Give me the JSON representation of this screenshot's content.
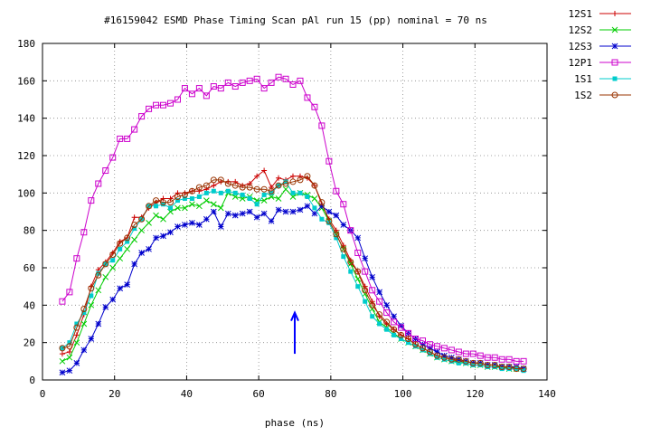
{
  "chart_data": {
    "type": "line",
    "title": "#16159042 ESMD Phase Timing Scan pAl run 15 (pp) nominal = 70 ns",
    "xlabel": "phase (ns)",
    "ylabel": "",
    "xlim": [
      0,
      140
    ],
    "ylim": [
      0,
      180
    ],
    "xticks": [
      0,
      20,
      40,
      60,
      80,
      100,
      120,
      140
    ],
    "yticks": [
      0,
      20,
      40,
      60,
      80,
      100,
      120,
      140,
      160,
      180
    ],
    "grid": "dotted",
    "legend_position": "outside-top-right",
    "annotation": {
      "type": "arrow",
      "x": 70,
      "y_from": 14,
      "y_to": 36,
      "color": "#0000ff"
    },
    "x": [
      5.5,
      7.5,
      9.5,
      11.5,
      13.5,
      15.5,
      17.5,
      19.5,
      21.5,
      23.5,
      25.5,
      27.5,
      29.5,
      31.5,
      33.5,
      35.5,
      37.5,
      39.5,
      41.5,
      43.5,
      45.5,
      47.5,
      49.5,
      51.5,
      53.5,
      55.5,
      57.5,
      59.5,
      61.5,
      63.5,
      65.5,
      67.5,
      69.5,
      71.5,
      73.5,
      75.5,
      77.5,
      79.5,
      81.5,
      83.5,
      85.5,
      87.5,
      89.5,
      91.5,
      93.5,
      95.5,
      97.5,
      99.5,
      101.5,
      103.5,
      105.5,
      107.5,
      109.5,
      111.5,
      113.5,
      115.5,
      117.5,
      119.5,
      121.5,
      123.5,
      125.5,
      127.5,
      129.5,
      131.5,
      133.5
    ],
    "series": [
      {
        "name": "12S1",
        "color": "#cc0000",
        "marker": "plus",
        "values": [
          14,
          15,
          24,
          35,
          50,
          59,
          63,
          68,
          74,
          76,
          87,
          87,
          92,
          95,
          97,
          97,
          100,
          100,
          101,
          101,
          102,
          104,
          106,
          106,
          106,
          104,
          105,
          109,
          112,
          103,
          108,
          107,
          109,
          109,
          108,
          104,
          94,
          86,
          80,
          72,
          64,
          58,
          50,
          42,
          34,
          30,
          27,
          24,
          22,
          19,
          17,
          15,
          13,
          12,
          11,
          10,
          10,
          9,
          9,
          8,
          8,
          7,
          7,
          6,
          6
        ]
      },
      {
        "name": "12S2",
        "color": "#00cc00",
        "marker": "cross",
        "values": [
          10,
          12,
          20,
          30,
          40,
          48,
          55,
          60,
          65,
          70,
          75,
          80,
          84,
          88,
          86,
          90,
          92,
          92,
          94,
          93,
          96,
          94,
          92,
          100,
          98,
          97,
          98,
          96,
          96,
          98,
          97,
          102,
          98,
          100,
          99,
          97,
          92,
          85,
          78,
          70,
          62,
          54,
          46,
          38,
          31,
          28,
          25,
          22,
          20,
          18,
          16,
          14,
          12,
          11,
          10,
          10,
          9,
          8,
          8,
          7,
          7,
          7,
          6,
          6,
          6
        ]
      },
      {
        "name": "12S3",
        "color": "#0000cc",
        "marker": "star",
        "values": [
          4,
          5,
          9,
          16,
          22,
          30,
          39,
          43,
          49,
          51,
          62,
          68,
          70,
          76,
          77,
          79,
          82,
          83,
          84,
          83,
          86,
          90,
          82,
          89,
          88,
          89,
          90,
          87,
          89,
          85,
          91,
          90,
          90,
          91,
          93,
          89,
          93,
          90,
          88,
          83,
          80,
          76,
          65,
          55,
          47,
          40,
          34,
          29,
          25,
          22,
          19,
          17,
          15,
          13,
          12,
          11,
          10,
          9,
          9,
          8,
          8,
          7,
          7,
          7,
          6
        ]
      },
      {
        "name": "12P1",
        "color": "#cc00cc",
        "marker": "square",
        "values": [
          42,
          47,
          65,
          79,
          96,
          105,
          112,
          119,
          129,
          129,
          134,
          141,
          145,
          147,
          147,
          148,
          150,
          156,
          153,
          156,
          152,
          157,
          156,
          159,
          157,
          159,
          160,
          161,
          156,
          159,
          162,
          161,
          158,
          160,
          151,
          146,
          136,
          117,
          101,
          94,
          80,
          68,
          58,
          48,
          42,
          36,
          31,
          28,
          25,
          22,
          21,
          19,
          18,
          17,
          16,
          15,
          14,
          14,
          13,
          12,
          12,
          11,
          11,
          10,
          10
        ]
      },
      {
        "name": "1S1",
        "color": "#00cccc",
        "marker": "filled-square",
        "values": [
          17,
          20,
          30,
          36,
          45,
          57,
          62,
          64,
          70,
          74,
          81,
          86,
          93,
          93,
          94,
          92,
          96,
          97,
          97,
          98,
          100,
          101,
          100,
          101,
          100,
          99,
          97,
          94,
          99,
          100,
          104,
          106,
          100,
          100,
          98,
          92,
          86,
          84,
          76,
          66,
          58,
          50,
          42,
          34,
          30,
          27,
          24,
          22,
          20,
          18,
          16,
          14,
          12,
          11,
          10,
          9,
          9,
          8,
          8,
          7,
          7,
          6,
          6,
          6,
          5
        ]
      },
      {
        "name": "1S2",
        "color": "#993300",
        "marker": "circle",
        "values": [
          17,
          18,
          28,
          38,
          49,
          56,
          62,
          67,
          73,
          76,
          83,
          86,
          93,
          96,
          95,
          95,
          98,
          99,
          101,
          103,
          104,
          107,
          107,
          105,
          104,
          103,
          103,
          102,
          102,
          101,
          104,
          105,
          106,
          107,
          109,
          104,
          95,
          85,
          78,
          70,
          63,
          58,
          48,
          40,
          35,
          31,
          27,
          24,
          22,
          19,
          17,
          15,
          13,
          12,
          11,
          11,
          10,
          9,
          9,
          8,
          8,
          7,
          7,
          6,
          6
        ]
      }
    ]
  }
}
